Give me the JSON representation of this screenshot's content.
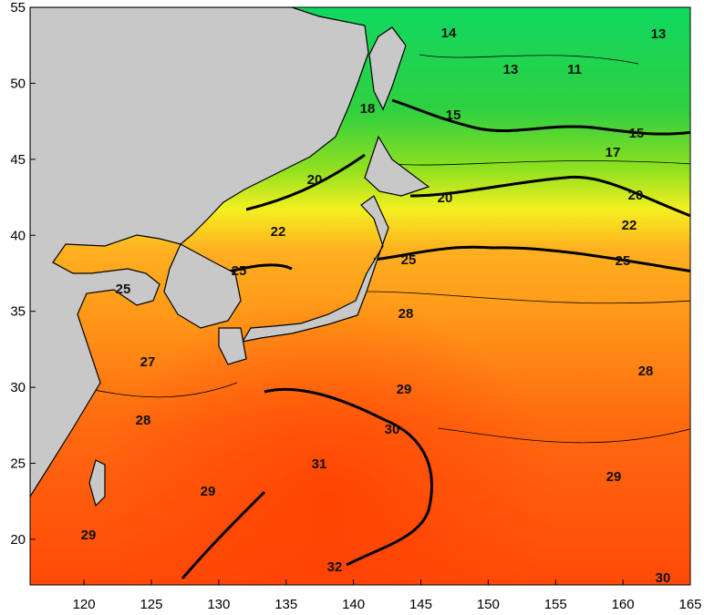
{
  "map": {
    "xlim": [
      116,
      165
    ],
    "ylim": [
      17,
      55
    ],
    "x_axis": {
      "ticks": [
        120,
        125,
        130,
        135,
        140,
        145,
        150,
        155,
        160,
        165
      ]
    },
    "y_axis": {
      "ticks": [
        20,
        25,
        30,
        35,
        40,
        45,
        50,
        55
      ]
    },
    "contour_labels": [
      "14",
      "13",
      "13",
      "11",
      "18",
      "15",
      "15",
      "17",
      "20",
      "20",
      "20",
      "22",
      "22",
      "25",
      "25",
      "25",
      "25",
      "28",
      "27",
      "29",
      "28",
      "28",
      "30",
      "31",
      "29",
      "29",
      "29",
      "32",
      "30"
    ]
  }
}
